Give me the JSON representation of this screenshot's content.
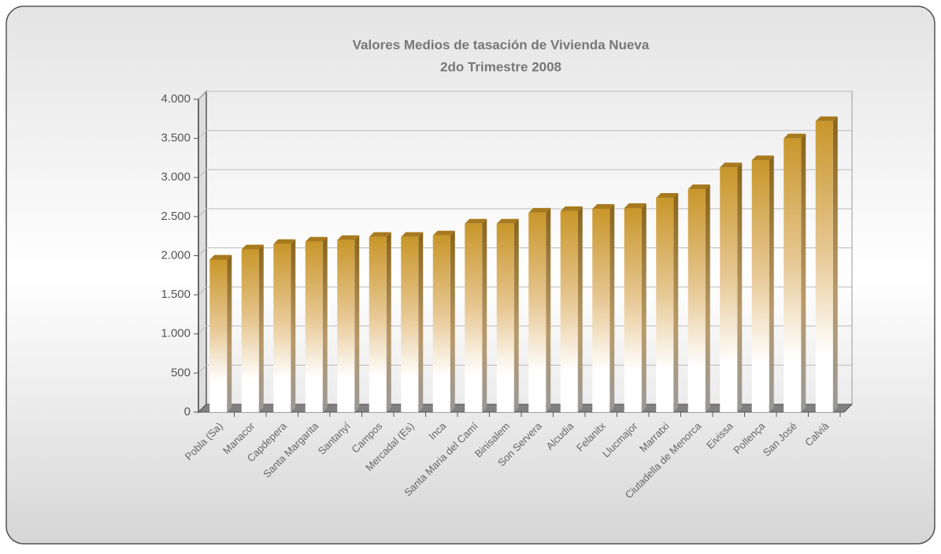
{
  "chart_data": {
    "type": "bar",
    "title": "Valores Medios de tasación de Vivienda Nueva",
    "subtitle": "2do Trimestre 2008",
    "categories": [
      "Pobla (Sa)",
      "Manacor",
      "Capdepera",
      "Santa Margarita",
      "Santanyí",
      "Campos",
      "Mercadal (Es)",
      "Inca",
      "Santa Maria del Camí",
      "Binisalem",
      "Son Servera",
      "Alcudia",
      "Felanitx",
      "Llucmajor",
      "Marratxi",
      "Ciutadella de Menorca",
      "Eivissa",
      "Pollença",
      "San José",
      "Calvià"
    ],
    "values": [
      1950,
      2080,
      2150,
      2180,
      2200,
      2240,
      2240,
      2260,
      2410,
      2410,
      2550,
      2570,
      2600,
      2610,
      2740,
      2850,
      3130,
      3220,
      3500,
      3720
    ],
    "color": "#c8962a",
    "ylim": [
      0,
      4000
    ],
    "yticks": [
      0,
      500,
      {
        "value": 1000,
        "label": "1.000"
      },
      {
        "value": 1500,
        "label": "1.500"
      },
      {
        "value": 2000,
        "label": "2.000"
      },
      {
        "value": 2500,
        "label": "2.500"
      },
      {
        "value": 3000,
        "label": "3.000"
      },
      {
        "value": 3500,
        "label": "3.500"
      },
      {
        "value": 4000,
        "label": "4.000"
      }
    ],
    "grid": true
  }
}
